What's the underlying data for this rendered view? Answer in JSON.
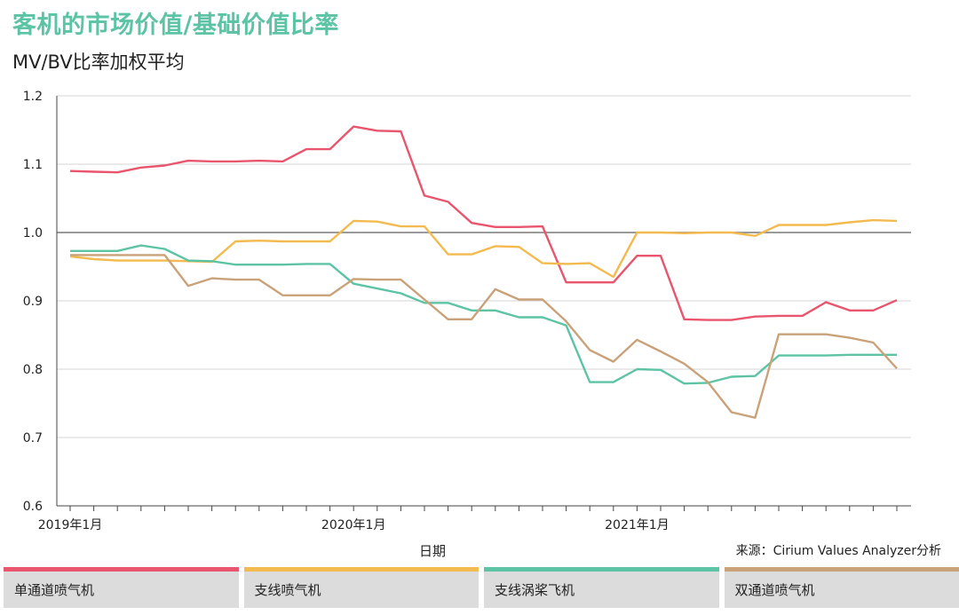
{
  "title": "客机的市场价值/基础价值比率",
  "subtitle": "MV/BV比率加权平均",
  "source": "来源：Cirium Values Analyzer分析",
  "chart_data": {
    "type": "line",
    "xlabel": "日期",
    "ylabel": "",
    "ylim": [
      0.6,
      1.2
    ],
    "yticks": [
      "0.6",
      "0.7",
      "0.8",
      "0.9",
      "1.0",
      "1.1",
      "1.2"
    ],
    "x_tick_labels": [
      {
        "index": 0,
        "label": "2019年1月"
      },
      {
        "index": 12,
        "label": "2020年1月"
      },
      {
        "index": 24,
        "label": "2021年1月"
      }
    ],
    "x_start": "2019-01",
    "x_end": "2022-08",
    "reference_line": 1.0,
    "grid": true,
    "legend_position": "bottom",
    "series": [
      {
        "name": "单通道喷气机",
        "color": "#e8556d",
        "values": [
          1.09,
          1.089,
          1.088,
          1.095,
          1.098,
          1.105,
          1.104,
          1.104,
          1.105,
          1.104,
          1.122,
          1.122,
          1.155,
          1.149,
          1.148,
          1.054,
          1.045,
          1.014,
          1.008,
          1.008,
          1.009,
          0.927,
          0.927,
          0.927,
          0.966,
          0.966,
          0.873,
          0.872,
          0.872,
          0.877,
          0.878,
          0.878,
          0.898,
          0.886,
          0.886,
          0.901
        ]
      },
      {
        "name": "支线喷气机",
        "color": "#f3bb4f",
        "values": [
          0.965,
          0.961,
          0.959,
          0.959,
          0.959,
          0.958,
          0.957,
          0.987,
          0.988,
          0.987,
          0.987,
          0.987,
          1.017,
          1.016,
          1.009,
          1.009,
          0.968,
          0.968,
          0.98,
          0.979,
          0.955,
          0.954,
          0.955,
          0.935,
          1.0,
          1.0,
          0.999,
          1.0,
          1.0,
          0.995,
          1.011,
          1.011,
          1.011,
          1.015,
          1.018,
          1.017
        ]
      },
      {
        "name": "支线涡桨飞机",
        "color": "#5cc4a4",
        "values": [
          0.973,
          0.973,
          0.973,
          0.981,
          0.976,
          0.959,
          0.958,
          0.953,
          0.953,
          0.953,
          0.954,
          0.954,
          0.925,
          0.918,
          0.911,
          0.897,
          0.897,
          0.886,
          0.886,
          0.876,
          0.876,
          0.864,
          0.781,
          0.781,
          0.8,
          0.799,
          0.779,
          0.78,
          0.789,
          0.79,
          0.82,
          0.82,
          0.82,
          0.821,
          0.821,
          0.821
        ]
      },
      {
        "name": "双通道喷气机",
        "color": "#c9a27a",
        "values": [
          0.967,
          0.967,
          0.967,
          0.967,
          0.967,
          0.922,
          0.933,
          0.931,
          0.931,
          0.908,
          0.908,
          0.908,
          0.932,
          0.931,
          0.931,
          0.902,
          0.873,
          0.873,
          0.917,
          0.902,
          0.902,
          0.87,
          0.828,
          0.811,
          0.843,
          0.826,
          0.808,
          0.781,
          0.737,
          0.729,
          0.851,
          0.851,
          0.851,
          0.846,
          0.839,
          0.801
        ]
      }
    ]
  }
}
